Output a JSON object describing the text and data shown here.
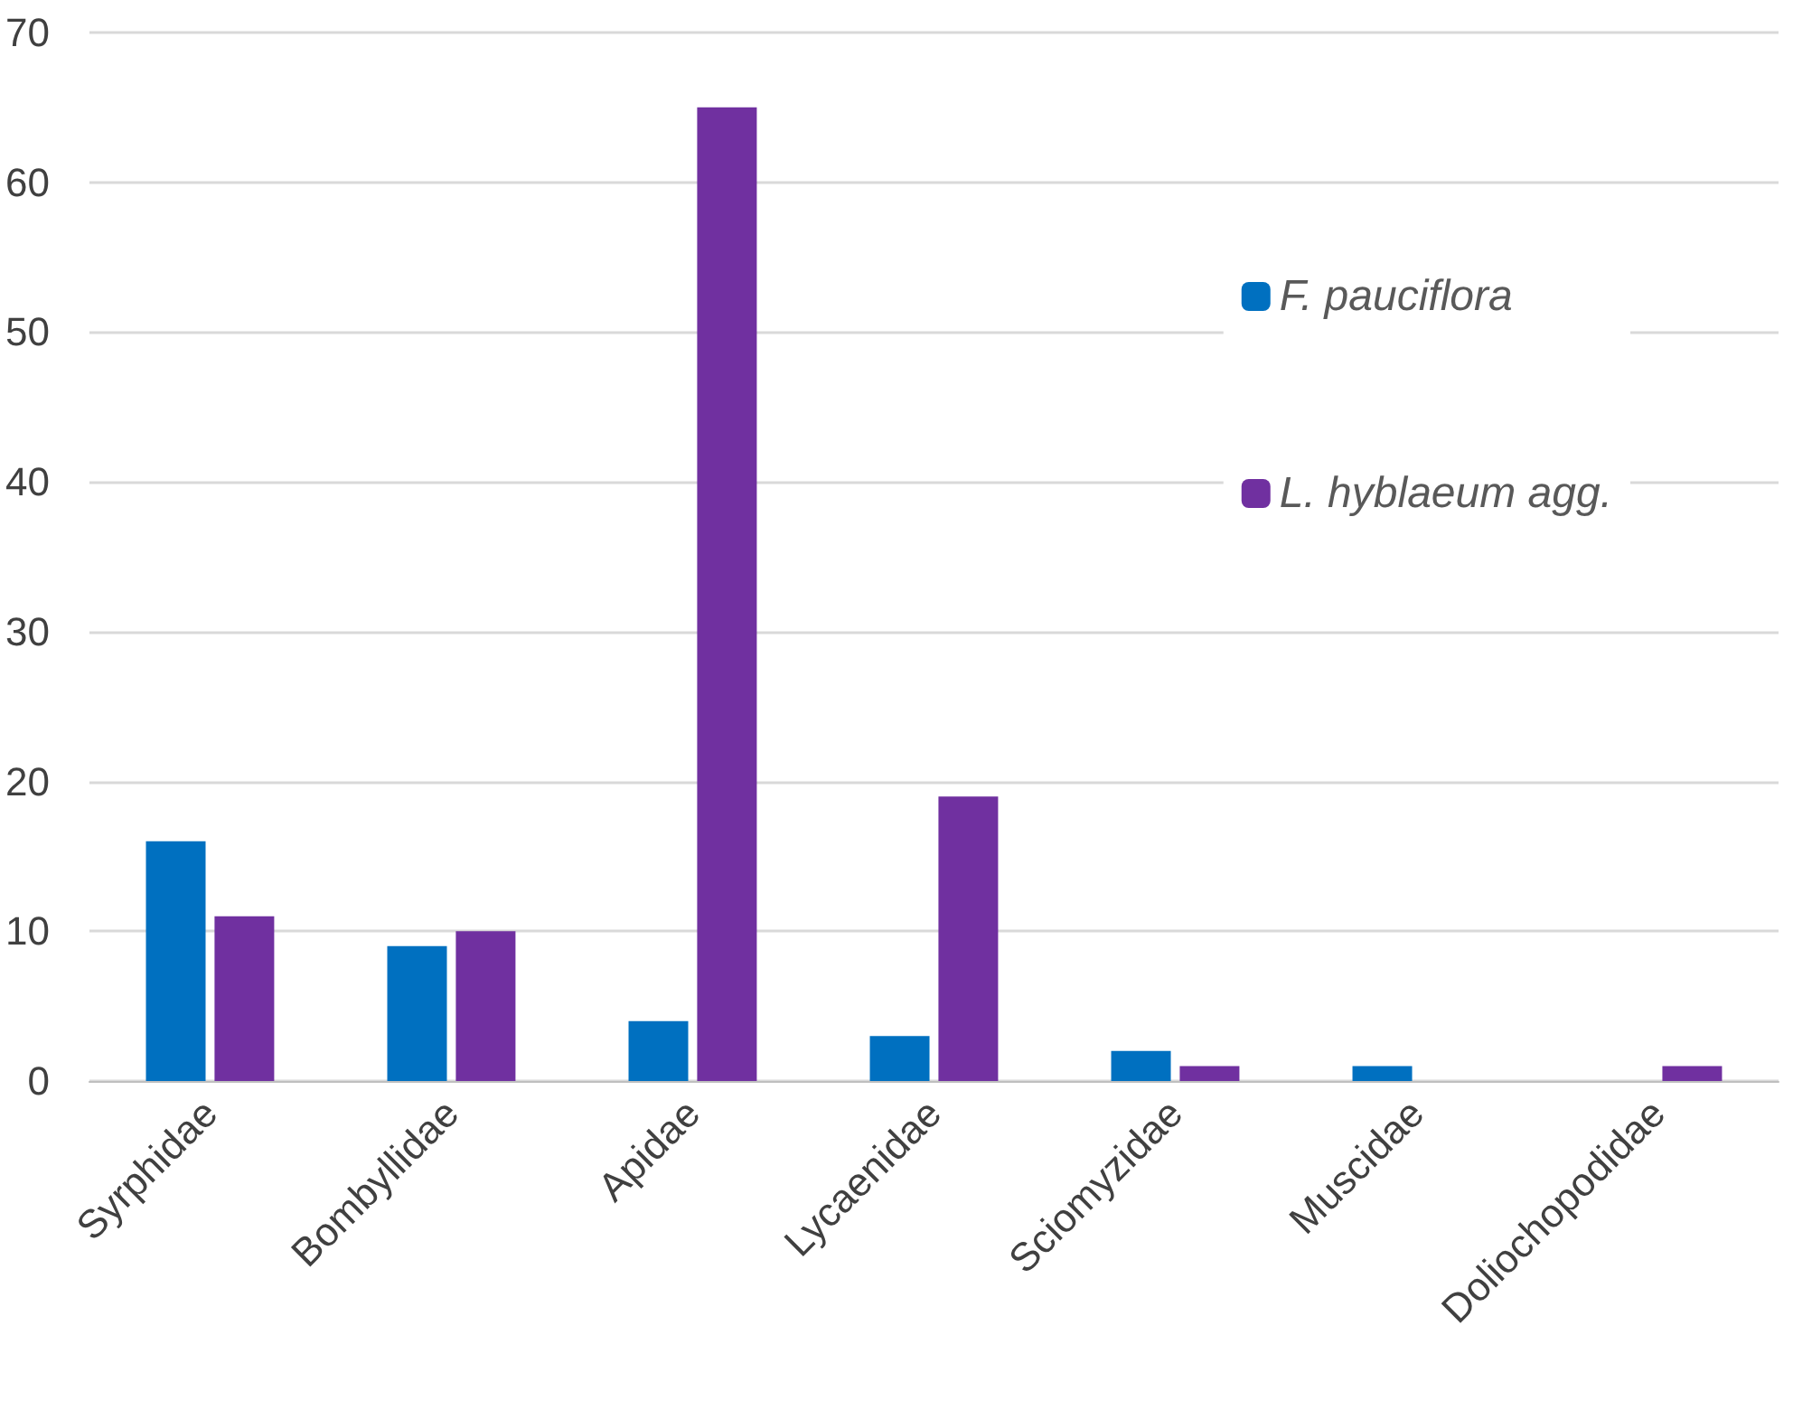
{
  "chart_data": {
    "type": "bar",
    "categories": [
      "Syrphidae",
      "Bombyllidae",
      "Apidae",
      "Lycaenidae",
      "Sciomyzidae",
      "Muscidae",
      "Doliochopodidae"
    ],
    "series": [
      {
        "name": "F. pauciflora",
        "color": "#0070c0",
        "values": [
          16,
          9,
          4,
          3,
          2,
          1,
          0
        ]
      },
      {
        "name": "L. hyblaeum agg.",
        "color": "#7030a0",
        "values": [
          11,
          10,
          65,
          19,
          1,
          0,
          1
        ]
      }
    ],
    "ylim": [
      0,
      70
    ],
    "yticks": [
      0,
      10,
      20,
      30,
      40,
      50,
      60,
      70
    ],
    "grid": "y",
    "legend": "top right"
  }
}
